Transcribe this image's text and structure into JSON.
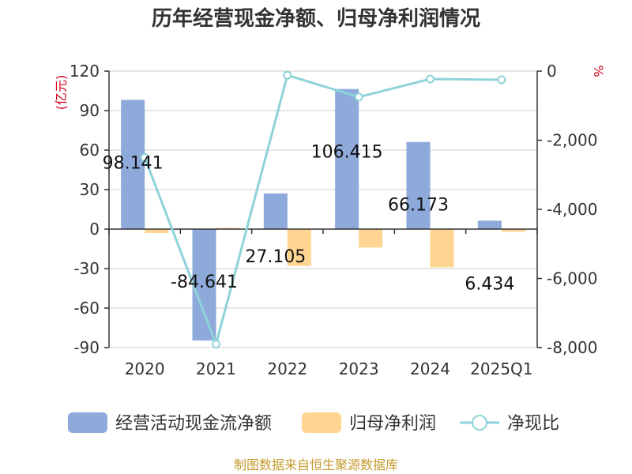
{
  "chart_data": {
    "type": "bar",
    "title": "历年经营现金净额、归母净利润情况",
    "categories": [
      "2020",
      "2021",
      "2022",
      "2023",
      "2024",
      "2025Q1"
    ],
    "left_axis": {
      "unit": "(亿元)",
      "ticks": [
        120,
        90,
        60,
        30,
        0,
        -30,
        -60,
        -90
      ],
      "ylim": [
        -90,
        120
      ]
    },
    "right_axis": {
      "unit": "%",
      "ticks": [
        "0",
        "-2,000",
        "-4,000",
        "-6,000",
        "-8,000"
      ],
      "tick_values": [
        0,
        -2000,
        -4000,
        -6000,
        -8000
      ],
      "ylim": [
        -8000,
        0
      ]
    },
    "series": [
      {
        "name": "经营活动现金流净额",
        "type": "bar",
        "axis": "left",
        "color": "#8eaadb",
        "values": [
          98.141,
          -84.641,
          27.105,
          106.415,
          66.173,
          6.434
        ],
        "labels": [
          "98.141",
          "-84.641",
          "27.105",
          "106.415",
          "66.173",
          "6.434"
        ]
      },
      {
        "name": "归母净利润",
        "type": "bar",
        "axis": "left",
        "color": "#ffd591",
        "values": [
          -3,
          1,
          -28,
          -14,
          -29,
          -2
        ]
      },
      {
        "name": "净现比",
        "type": "line",
        "axis": "right",
        "color": "#8dd3d8",
        "values": [
          -2500,
          -7900,
          -120,
          -750,
          -230,
          -250
        ]
      }
    ],
    "grid": true,
    "legend_position": "bottom"
  },
  "source": "制图数据来自恒生聚源数据库"
}
